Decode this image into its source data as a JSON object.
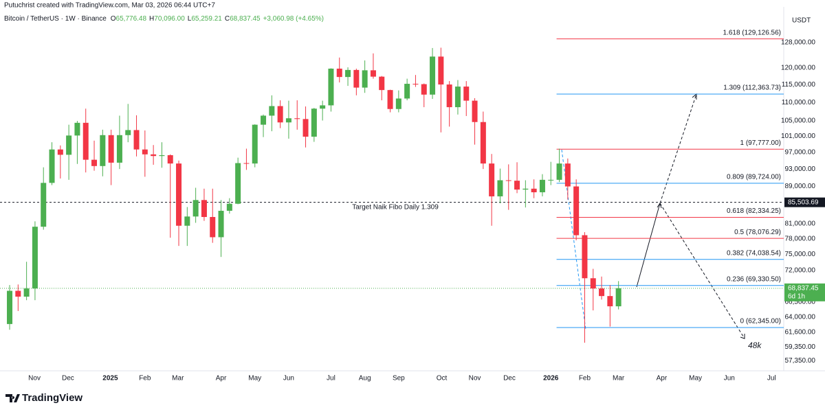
{
  "header": {
    "credit": "Putuchrist created with TradingView.com, Mar 03, 2026 06:44 UTC+7",
    "symbol": "Bitcoin / TetherUS · 1W · Binance",
    "ohlc": [
      {
        "key": "O",
        "value": "65,776.48"
      },
      {
        "key": "H",
        "value": "70,096.00"
      },
      {
        "key": "L",
        "value": "65,259.21"
      },
      {
        "key": "C",
        "value": "68,837.45"
      }
    ],
    "change": "+3,060.98 (+4.65%)"
  },
  "footer": {
    "brand": "TradingView"
  },
  "chart_data": {
    "type": "candlestick",
    "currency": "USDT",
    "log_scale": true,
    "grid": false,
    "up_color": "#4caf50",
    "down_color": "#f23645",
    "x": [
      0,
      1,
      2,
      3,
      4,
      5,
      6,
      7,
      8,
      9,
      10,
      11,
      12,
      13,
      14,
      15,
      16,
      17,
      18,
      19,
      20,
      21,
      22,
      23,
      24,
      25,
      26,
      27,
      28,
      29,
      30,
      31,
      32,
      33,
      34,
      35,
      36,
      37,
      38,
      39,
      40,
      41,
      42,
      43,
      44,
      45,
      46,
      47,
      48,
      49,
      50,
      51,
      52,
      53,
      54,
      55,
      56,
      57,
      58,
      59,
      60,
      61,
      62,
      63,
      64,
      65,
      66,
      67,
      68,
      69,
      70,
      71,
      72
    ],
    "candles": {
      "open": [
        62900,
        68400,
        67400,
        68800,
        80400,
        89800,
        97700,
        96400,
        101200,
        104500,
        95200,
        93700,
        101300,
        94500,
        101300,
        102600,
        97700,
        96500,
        96100,
        96300,
        94300,
        80600,
        82500,
        86000,
        82400,
        78300,
        83700,
        85200,
        94400,
        94300,
        104000,
        106400,
        109000,
        104600,
        105700,
        105500,
        100900,
        108300,
        109200,
        119800,
        117300,
        119400,
        114200,
        119300,
        117400,
        113500,
        108200,
        111100,
        115300,
        115200,
        112200,
        123500,
        115100,
        108700,
        114500,
        110500,
        104700,
        94300,
        86800,
        90400,
        90300,
        88300,
        88500,
        87700,
        90500,
        90500,
        94300,
        89000,
        78700,
        70600,
        68800,
        67500,
        65776.48
      ],
      "high": [
        69400,
        69500,
        73600,
        81500,
        93400,
        99500,
        98700,
        104000,
        105000,
        108300,
        99900,
        102700,
        102700,
        106400,
        109600,
        106500,
        102500,
        98800,
        99500,
        96500,
        95000,
        84500,
        88700,
        88500,
        88500,
        86000,
        86400,
        95700,
        97900,
        104100,
        106700,
        112000,
        110600,
        110500,
        110600,
        108900,
        108500,
        110500,
        119900,
        123200,
        120200,
        119800,
        122300,
        124500,
        117600,
        113600,
        113400,
        116800,
        117900,
        115400,
        126200,
        126300,
        116100,
        116400,
        116100,
        111200,
        107500,
        96600,
        93100,
        94100,
        94600,
        90400,
        90600,
        91800,
        94700,
        97900,
        95500,
        90600,
        79300,
        72300,
        70900,
        69400,
        70096
      ],
      "low": [
        62000,
        65000,
        66800,
        66800,
        79800,
        89300,
        90800,
        90500,
        94200,
        92200,
        92600,
        91300,
        89300,
        93000,
        99500,
        96000,
        91200,
        94000,
        93300,
        78200,
        76600,
        76600,
        81200,
        81600,
        77200,
        74500,
        83100,
        85100,
        92800,
        93400,
        100800,
        102300,
        103100,
        100400,
        102700,
        98200,
        99600,
        105100,
        107500,
        115700,
        114700,
        112000,
        112700,
        116800,
        110600,
        107300,
        107300,
        110600,
        114400,
        108700,
        111000,
        102000,
        103500,
        106700,
        106300,
        98900,
        93000,
        80600,
        85300,
        83900,
        87500,
        84400,
        86400,
        86800,
        89300,
        90000,
        86100,
        77700,
        60000,
        65100,
        66900,
        62500,
        65259.21
      ],
      "close": [
        68400,
        67400,
        68800,
        80400,
        89800,
        97700,
        96400,
        101200,
        104500,
        95200,
        93700,
        101300,
        94500,
        101300,
        102600,
        97700,
        96500,
        96100,
        96300,
        94300,
        80600,
        82500,
        86000,
        82400,
        78300,
        83700,
        85200,
        94400,
        94300,
        104000,
        106400,
        109000,
        104600,
        105700,
        105500,
        100900,
        108300,
        109200,
        119800,
        117300,
        119400,
        114200,
        119300,
        117400,
        113500,
        108200,
        111100,
        115300,
        115200,
        112200,
        123500,
        115100,
        108700,
        114500,
        110500,
        104700,
        94300,
        86800,
        90400,
        90300,
        88300,
        88500,
        87700,
        90500,
        90500,
        94300,
        89000,
        78700,
        70600,
        68800,
        67500,
        65776,
        68837.45
      ]
    },
    "xlim": [
      -1.14,
      91.54
    ],
    "xticks": [
      {
        "value": 2.93,
        "label": "Nov"
      },
      {
        "value": 6.9,
        "label": "Dec"
      },
      {
        "value": 11.9,
        "label": "2025"
      },
      {
        "value": 16.0,
        "label": "Feb"
      },
      {
        "value": 19.9,
        "label": "Mar"
      },
      {
        "value": 25.0,
        "label": "Apr"
      },
      {
        "value": 29.0,
        "label": "May"
      },
      {
        "value": 33.0,
        "label": "Jun"
      },
      {
        "value": 38.0,
        "label": "Jul"
      },
      {
        "value": 42.0,
        "label": "Aug"
      },
      {
        "value": 46.0,
        "label": "Sep"
      },
      {
        "value": 51.1,
        "label": "Oct"
      },
      {
        "value": 55.0,
        "label": "Nov"
      },
      {
        "value": 59.1,
        "label": "Dec"
      },
      {
        "value": 64.0,
        "label": "2026"
      },
      {
        "value": 68.0,
        "label": "Feb"
      },
      {
        "value": 72.0,
        "label": "Mar"
      },
      {
        "value": 77.1,
        "label": "Apr"
      },
      {
        "value": 81.1,
        "label": "May"
      },
      {
        "value": 85.1,
        "label": "Jun"
      },
      {
        "value": 90.1,
        "label": "Jul"
      }
    ],
    "ylim": [
      55900,
      140000
    ],
    "yticks": [
      {
        "value": 128000,
        "label": "128,000.00"
      },
      {
        "value": 120000,
        "label": "120,000.00"
      },
      {
        "value": 115000,
        "label": "115,000.00"
      },
      {
        "value": 110000,
        "label": "110,000.00"
      },
      {
        "value": 105000,
        "label": "105,000.00"
      },
      {
        "value": 101000,
        "label": "101,000.00"
      },
      {
        "value": 97000,
        "label": "97,000.00"
      },
      {
        "value": 93000,
        "label": "93,000.00"
      },
      {
        "value": 89000,
        "label": "89,000.00"
      },
      {
        "value": 81000,
        "label": "81,000.00"
      },
      {
        "value": 78000,
        "label": "78,000.00"
      },
      {
        "value": 75000,
        "label": "75,000.00"
      },
      {
        "value": 72000,
        "label": "72,000.00"
      },
      {
        "value": 66500,
        "label": "66,500.00"
      },
      {
        "value": 64000,
        "label": "64,000.00"
      },
      {
        "value": 61600,
        "label": "61,600.00"
      },
      {
        "value": 59350,
        "label": "59,350.00"
      },
      {
        "value": 57350,
        "label": "57,350.00"
      }
    ],
    "fib_start": 65,
    "fib_levels": [
      {
        "value": 129126.56,
        "label": "1.618 (129,126.56)",
        "color": "#f23645"
      },
      {
        "value": 112363.73,
        "label": "1.309 (112,363.73)",
        "color": "#2196f3"
      },
      {
        "value": 97777.0,
        "label": "1 (97,777.00)",
        "color": "#f23645"
      },
      {
        "value": 89724.0,
        "label": "0.809 (89,724.00)",
        "color": "#2196f3"
      },
      {
        "value": 82334.25,
        "label": "0.618 (82,334.25)",
        "color": "#f23645"
      },
      {
        "value": 78076.29,
        "label": "0.5 (78,076.29)",
        "color": "#f23645"
      },
      {
        "value": 74038.54,
        "label": "0.382 (74,038.54)",
        "color": "#2196f3"
      },
      {
        "value": 69330.5,
        "label": "0.236 (69,330.50)",
        "color": "#2196f3"
      },
      {
        "value": 62345.0,
        "label": "0 (62,345.00)",
        "color": "#2196f3"
      }
    ],
    "target": {
      "value": 85503.69,
      "label": "85,503.69",
      "text": "Target Naik Fibo Daily 1.309"
    },
    "price_line": {
      "value": 68837.45,
      "label": "68,837.45",
      "countdown": "6d 1h"
    },
    "annotation": "48k"
  }
}
